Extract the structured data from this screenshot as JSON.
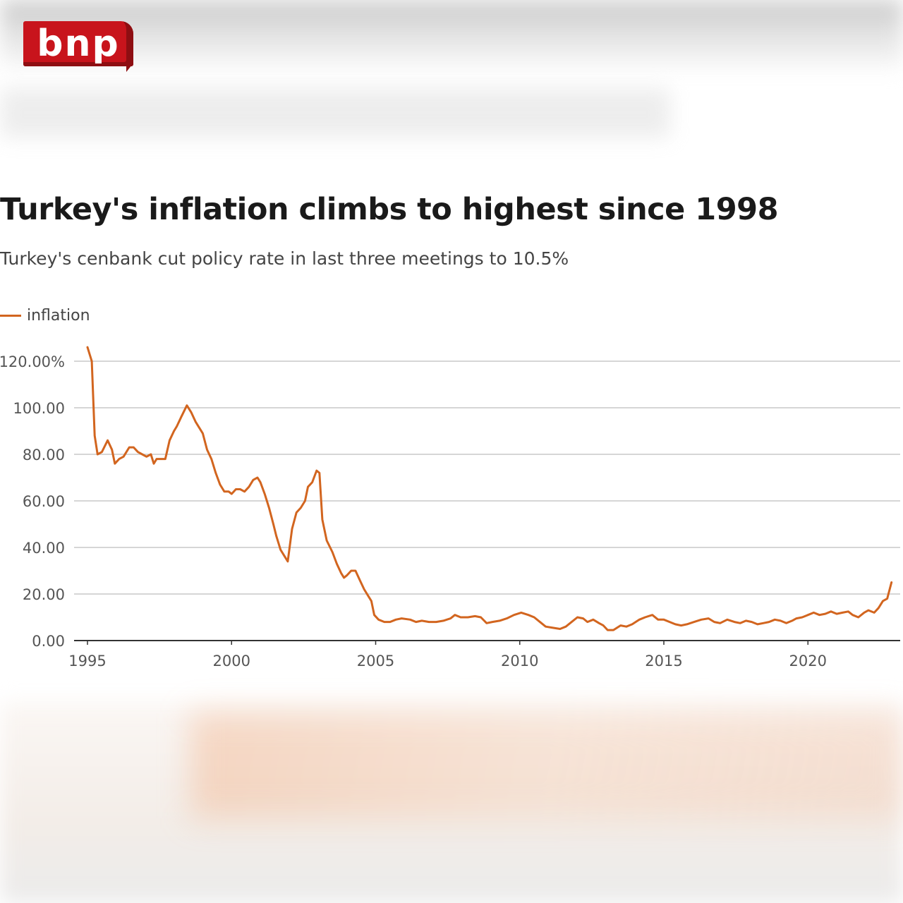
{
  "brand": {
    "logo_text": "bnp",
    "color": "#c8141c"
  },
  "header": {
    "title": "Turkey's inflation climbs to highest since 1998",
    "subtitle": "Turkey's cenbank cut policy rate in last three meetings to 10.5%"
  },
  "chart_data": {
    "type": "line",
    "title": "Turkey's inflation climbs to highest since 1998",
    "subtitle": "Turkey's cenbank cut policy rate in last three meetings to 10.5%",
    "xlabel": "",
    "ylabel": "",
    "xlim": [
      1995,
      2023
    ],
    "ylim": [
      0,
      120
    ],
    "x_ticks": [
      1995,
      2000,
      2005,
      2010,
      2015,
      2020
    ],
    "x_tick_labels": [
      "1995",
      "2000",
      "2005",
      "2010",
      "2015",
      "2020"
    ],
    "y_ticks": [
      0,
      20,
      40,
      60,
      80,
      100,
      120
    ],
    "y_tick_labels": [
      "0.00",
      "20.00",
      "40.00",
      "60.00",
      "80.00",
      "100.00",
      "120.00%"
    ],
    "grid": true,
    "legend_position": "top-left",
    "series": [
      {
        "name": "inflation",
        "color": "#d2651f",
        "points": [
          [
            1995.0,
            126
          ],
          [
            1995.15,
            120
          ],
          [
            1995.25,
            88
          ],
          [
            1995.35,
            80
          ],
          [
            1995.5,
            81
          ],
          [
            1995.7,
            86
          ],
          [
            1995.85,
            82
          ],
          [
            1995.95,
            76
          ],
          [
            1996.1,
            78
          ],
          [
            1996.25,
            79
          ],
          [
            1996.45,
            83
          ],
          [
            1996.6,
            83
          ],
          [
            1996.75,
            81
          ],
          [
            1996.9,
            80
          ],
          [
            1997.05,
            79
          ],
          [
            1997.2,
            80
          ],
          [
            1997.3,
            76
          ],
          [
            1997.4,
            78
          ],
          [
            1997.55,
            78
          ],
          [
            1997.7,
            78
          ],
          [
            1997.85,
            86
          ],
          [
            1998.0,
            90
          ],
          [
            1998.1,
            92
          ],
          [
            1998.25,
            96
          ],
          [
            1998.45,
            101
          ],
          [
            1998.6,
            98
          ],
          [
            1998.75,
            94
          ],
          [
            1998.9,
            91
          ],
          [
            1999.0,
            89
          ],
          [
            1999.15,
            82
          ],
          [
            1999.3,
            78
          ],
          [
            1999.45,
            72
          ],
          [
            1999.6,
            67
          ],
          [
            1999.75,
            64
          ],
          [
            1999.9,
            64
          ],
          [
            2000.0,
            63
          ],
          [
            2000.15,
            65
          ],
          [
            2000.3,
            65
          ],
          [
            2000.45,
            64
          ],
          [
            2000.6,
            66
          ],
          [
            2000.75,
            69
          ],
          [
            2000.9,
            70
          ],
          [
            2001.0,
            68
          ],
          [
            2001.15,
            63
          ],
          [
            2001.3,
            57
          ],
          [
            2001.45,
            50
          ],
          [
            2001.55,
            45
          ],
          [
            2001.7,
            39
          ],
          [
            2001.85,
            36
          ],
          [
            2001.95,
            34
          ],
          [
            2002.1,
            48
          ],
          [
            2002.25,
            55
          ],
          [
            2002.4,
            57
          ],
          [
            2002.55,
            60
          ],
          [
            2002.65,
            66
          ],
          [
            2002.8,
            68
          ],
          [
            2002.95,
            73
          ],
          [
            2003.05,
            72
          ],
          [
            2003.15,
            52
          ],
          [
            2003.3,
            43
          ],
          [
            2003.5,
            38
          ],
          [
            2003.65,
            33
          ],
          [
            2003.8,
            29
          ],
          [
            2003.9,
            27
          ],
          [
            2004.0,
            28
          ],
          [
            2004.15,
            30
          ],
          [
            2004.3,
            30
          ],
          [
            2004.45,
            26
          ],
          [
            2004.6,
            22
          ],
          [
            2004.75,
            19
          ],
          [
            2004.85,
            17
          ],
          [
            2004.95,
            11
          ],
          [
            2005.1,
            9
          ],
          [
            2005.3,
            8
          ],
          [
            2005.5,
            8
          ],
          [
            2005.7,
            9
          ],
          [
            2005.9,
            9.5
          ],
          [
            2006.2,
            9
          ],
          [
            2006.4,
            8
          ],
          [
            2006.6,
            8.5
          ],
          [
            2006.85,
            8
          ],
          [
            2007.1,
            8
          ],
          [
            2007.35,
            8.5
          ],
          [
            2007.6,
            9.5
          ],
          [
            2007.75,
            11
          ],
          [
            2007.95,
            10
          ],
          [
            2008.2,
            10
          ],
          [
            2008.45,
            10.5
          ],
          [
            2008.65,
            10
          ],
          [
            2008.85,
            7.5
          ],
          [
            2009.05,
            8
          ],
          [
            2009.3,
            8.5
          ],
          [
            2009.55,
            9.5
          ],
          [
            2009.8,
            11
          ],
          [
            2010.05,
            12
          ],
          [
            2010.3,
            11
          ],
          [
            2010.5,
            10
          ],
          [
            2010.7,
            8
          ],
          [
            2010.9,
            6
          ],
          [
            2011.15,
            5.5
          ],
          [
            2011.4,
            5
          ],
          [
            2011.6,
            6
          ],
          [
            2011.8,
            8
          ],
          [
            2012.0,
            10
          ],
          [
            2012.2,
            9.5
          ],
          [
            2012.35,
            8
          ],
          [
            2012.55,
            9
          ],
          [
            2012.75,
            7.5
          ],
          [
            2012.9,
            6.5
          ],
          [
            2013.05,
            4.5
          ],
          [
            2013.25,
            4.5
          ],
          [
            2013.5,
            6.5
          ],
          [
            2013.7,
            6
          ],
          [
            2013.9,
            7
          ],
          [
            2014.15,
            9
          ],
          [
            2014.35,
            10
          ],
          [
            2014.6,
            11
          ],
          [
            2014.8,
            9
          ],
          [
            2015.0,
            9
          ],
          [
            2015.2,
            8
          ],
          [
            2015.4,
            7
          ],
          [
            2015.6,
            6.5
          ],
          [
            2015.8,
            7
          ],
          [
            2016.05,
            8
          ],
          [
            2016.3,
            9
          ],
          [
            2016.55,
            9.5
          ],
          [
            2016.75,
            8
          ],
          [
            2016.95,
            7.5
          ],
          [
            2017.2,
            9
          ],
          [
            2017.45,
            8
          ],
          [
            2017.65,
            7.5
          ],
          [
            2017.85,
            8.5
          ],
          [
            2018.05,
            8
          ],
          [
            2018.25,
            7
          ],
          [
            2018.45,
            7.5
          ],
          [
            2018.65,
            8
          ],
          [
            2018.85,
            9
          ],
          [
            2019.05,
            8.5
          ],
          [
            2019.25,
            7.5
          ],
          [
            2019.45,
            8.5
          ],
          [
            2019.6,
            9.5
          ],
          [
            2019.8,
            10
          ],
          [
            2020.0,
            11
          ],
          [
            2020.2,
            12
          ],
          [
            2020.4,
            11
          ],
          [
            2020.6,
            11.5
          ],
          [
            2020.8,
            12.5
          ],
          [
            2021.0,
            11.5
          ],
          [
            2021.2,
            12
          ],
          [
            2021.4,
            12.5
          ],
          [
            2021.55,
            11
          ],
          [
            2021.75,
            10
          ],
          [
            2021.95,
            12
          ],
          [
            2022.1,
            13
          ],
          [
            2022.3,
            12
          ],
          [
            2022.45,
            14
          ],
          [
            2022.6,
            17
          ],
          [
            2022.75,
            18
          ],
          [
            2022.9,
            25
          ]
        ]
      }
    ]
  },
  "colors": {
    "line": "#d2651f",
    "grid": "#c8c8c8",
    "axis": "#333333",
    "text": "#1a1a1a"
  }
}
